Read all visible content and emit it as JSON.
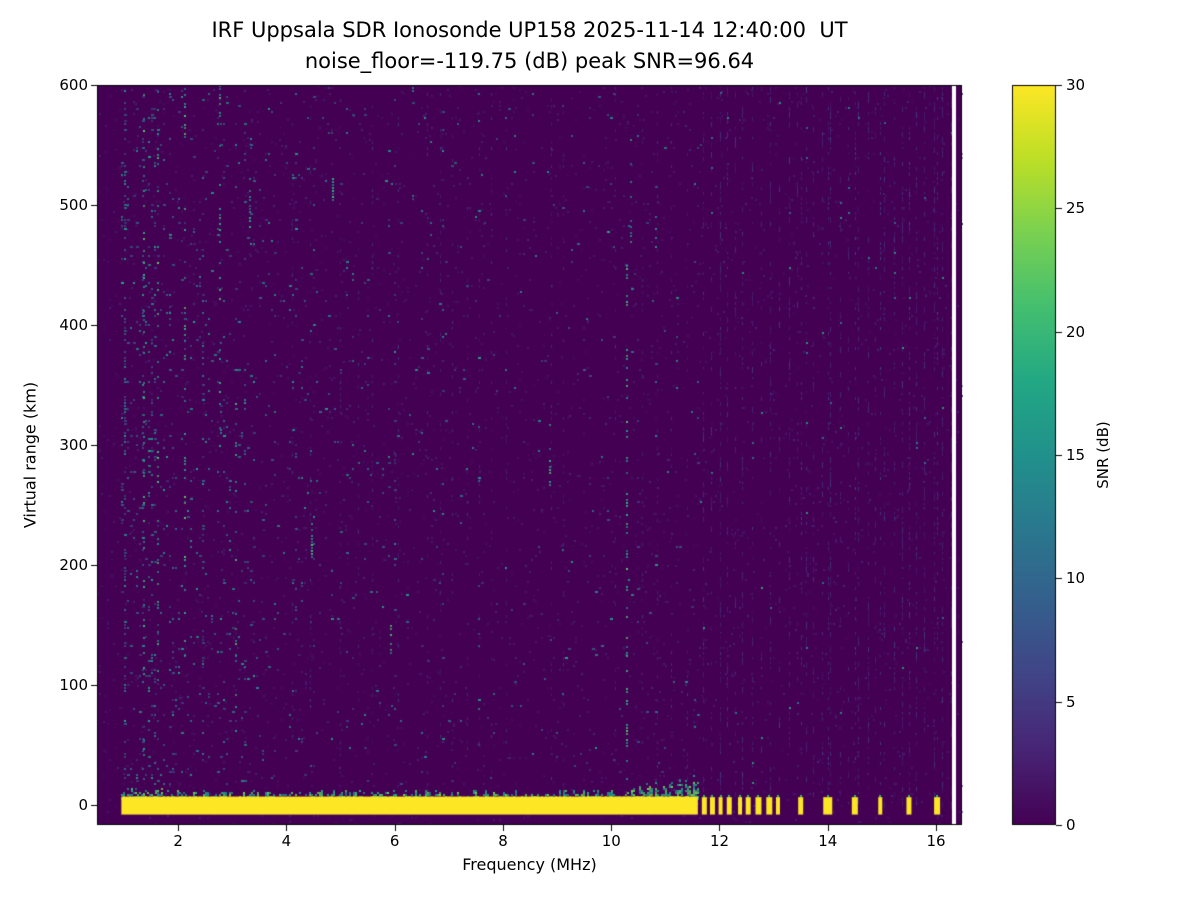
{
  "chart_data": {
    "type": "heatmap",
    "title": "IRF Uppsala SDR Ionosonde UP158 2025-11-14 12:40:00  UT",
    "subtitle": "noise_floor=-119.75 (dB) peak SNR=96.64",
    "xlabel": "Frequency (MHz)",
    "ylabel": "Virtual range (km)",
    "xlim": [
      0.5,
      16.48
    ],
    "ylim": [
      -16.7,
      600
    ],
    "xticks": [
      2,
      4,
      6,
      8,
      10,
      12,
      14,
      16
    ],
    "yticks": [
      0,
      100,
      200,
      300,
      400,
      500,
      600
    ],
    "grid": false,
    "colormap": "viridis",
    "legend": "none",
    "colorbar": {
      "label": "SNR (dB)",
      "min": 0,
      "max": 30,
      "ticks": [
        0,
        5,
        10,
        15,
        20,
        25,
        30
      ],
      "position": "right"
    },
    "noise_seed": 1337,
    "features": {
      "background_snr_db": 0,
      "ground_clutter_band": {
        "f_start": 0.95,
        "f_end": 11.6,
        "v_top_km": 7,
        "v_bottom_km": -8,
        "snr_db": 30
      },
      "band_fringe": {
        "v_top_km": 14,
        "boost_f_start": 10.4,
        "boost_v_top_km": 27,
        "snr_db_range": [
          12,
          25
        ]
      },
      "ground_clutter_pulses": [
        [
          11.72,
          5
        ],
        [
          11.87,
          5
        ],
        [
          12.02,
          4
        ],
        [
          12.18,
          5
        ],
        [
          12.38,
          4
        ],
        [
          12.53,
          5
        ],
        [
          12.72,
          6
        ],
        [
          12.92,
          6
        ],
        [
          13.08,
          4
        ],
        [
          13.5,
          5
        ],
        [
          14.0,
          9
        ],
        [
          14.5,
          6
        ],
        [
          14.97,
          4
        ],
        [
          15.5,
          5
        ],
        [
          16.02,
          6
        ]
      ],
      "bright_streaks": [
        [
          1.35,
          0,
          600,
          0.22
        ],
        [
          1.6,
          100,
          600,
          0.18
        ],
        [
          2.1,
          120,
          600,
          0.2
        ],
        [
          2.75,
          280,
          600,
          0.18
        ],
        [
          3.05,
          60,
          340,
          0.18
        ],
        [
          3.3,
          480,
          525,
          0.55
        ],
        [
          4.45,
          205,
          235,
          0.7
        ],
        [
          4.84,
          500,
          525,
          0.6
        ],
        [
          5.91,
          125,
          165,
          0.45
        ],
        [
          8.85,
          265,
          325,
          0.5
        ],
        [
          10.28,
          20,
          450,
          0.3
        ],
        [
          10.35,
          455,
          560,
          0.25
        ]
      ],
      "rfi_striation_region": {
        "f_start": 11.7,
        "f_end": 16.45,
        "spacing_mhz": 0.16
      },
      "blank_column_mhz": 16.33,
      "noise": {
        "base_density": 0.006,
        "lowfreq_density": 0.085,
        "lowfreq_decay_mhz": 1.9,
        "snr_db_range": [
          5,
          18
        ]
      }
    }
  },
  "colors": {
    "background_low": "#440154",
    "peak": "#fde725",
    "axis": "#000000",
    "page": "#ffffff"
  }
}
